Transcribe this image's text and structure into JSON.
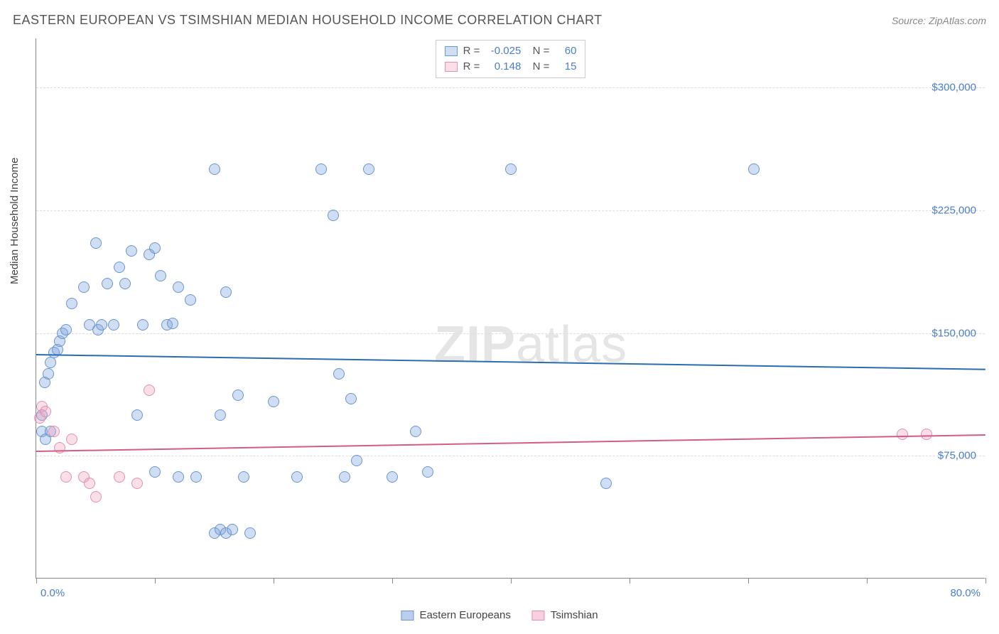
{
  "header": {
    "title": "EASTERN EUROPEAN VS TSIMSHIAN MEDIAN HOUSEHOLD INCOME CORRELATION CHART",
    "source": "Source: ZipAtlas.com"
  },
  "chart": {
    "type": "scatter",
    "y_axis_label": "Median Household Income",
    "x_range": [
      0,
      80
    ],
    "y_range": [
      0,
      330000
    ],
    "x_tick_positions": [
      0,
      10,
      20,
      30,
      40,
      50,
      60,
      70,
      80
    ],
    "x_labels": {
      "min": "0.0%",
      "max": "80.0%"
    },
    "y_gridlines": [
      {
        "value": 75000,
        "label": "$75,000"
      },
      {
        "value": 150000,
        "label": "$150,000"
      },
      {
        "value": 225000,
        "label": "$225,000"
      },
      {
        "value": 300000,
        "label": "$300,000"
      }
    ],
    "background_color": "#ffffff",
    "grid_color": "#dddddd",
    "axis_color": "#888888",
    "tick_label_color": "#4a7ec9",
    "point_radius": 8,
    "watermark": "ZIPatlas",
    "series": [
      {
        "name": "Eastern Europeans",
        "fill": "rgba(120,160,220,0.35)",
        "stroke": "#6a95d0",
        "trend_color": "#2b6cb0",
        "trend": {
          "y_at_xmin": 137000,
          "y_at_xmax": 128000
        },
        "stats": {
          "R": "-0.025",
          "N": "60"
        },
        "points": [
          [
            0.5,
            90000
          ],
          [
            0.5,
            100000
          ],
          [
            0.7,
            120000
          ],
          [
            1.0,
            125000
          ],
          [
            1.2,
            132000
          ],
          [
            1.5,
            138000
          ],
          [
            1.8,
            140000
          ],
          [
            2.0,
            145000
          ],
          [
            2.2,
            150000
          ],
          [
            2.5,
            152000
          ],
          [
            3.0,
            168000
          ],
          [
            4.0,
            178000
          ],
          [
            4.5,
            155000
          ],
          [
            5.0,
            205000
          ],
          [
            5.2,
            152000
          ],
          [
            5.5,
            155000
          ],
          [
            6.0,
            180000
          ],
          [
            6.5,
            155000
          ],
          [
            7.0,
            190000
          ],
          [
            7.5,
            180000
          ],
          [
            8.0,
            200000
          ],
          [
            8.5,
            100000
          ],
          [
            9.0,
            155000
          ],
          [
            9.5,
            198000
          ],
          [
            10.0,
            202000
          ],
          [
            10.5,
            185000
          ],
          [
            11.0,
            155000
          ],
          [
            11.5,
            156000
          ],
          [
            12.0,
            178000
          ],
          [
            13.0,
            170000
          ],
          [
            15.0,
            250000
          ],
          [
            16.0,
            175000
          ],
          [
            15.5,
            100000
          ],
          [
            10.0,
            65000
          ],
          [
            12.0,
            62000
          ],
          [
            13.5,
            62000
          ],
          [
            15.0,
            28000
          ],
          [
            15.5,
            30000
          ],
          [
            16.0,
            28000
          ],
          [
            16.5,
            30000
          ],
          [
            17.0,
            112000
          ],
          [
            17.5,
            62000
          ],
          [
            18.0,
            28000
          ],
          [
            20.0,
            108000
          ],
          [
            22.0,
            62000
          ],
          [
            24.0,
            250000
          ],
          [
            25.0,
            222000
          ],
          [
            25.5,
            125000
          ],
          [
            26.0,
            62000
          ],
          [
            26.5,
            110000
          ],
          [
            27.0,
            72000
          ],
          [
            28.0,
            250000
          ],
          [
            30.0,
            62000
          ],
          [
            32.0,
            90000
          ],
          [
            33.0,
            65000
          ],
          [
            40.0,
            250000
          ],
          [
            48.0,
            58000
          ],
          [
            60.5,
            250000
          ],
          [
            1.2,
            90000
          ],
          [
            0.8,
            85000
          ]
        ]
      },
      {
        "name": "Tsimshian",
        "fill": "rgba(240,160,190,0.35)",
        "stroke": "#e191b0",
        "trend_color": "#d65a8a",
        "trend": {
          "y_at_xmin": 78000,
          "y_at_xmax": 88000
        },
        "stats": {
          "R": "0.148",
          "N": "15"
        },
        "points": [
          [
            0.3,
            98000
          ],
          [
            0.5,
            105000
          ],
          [
            0.8,
            102000
          ],
          [
            1.5,
            90000
          ],
          [
            2.0,
            80000
          ],
          [
            2.5,
            62000
          ],
          [
            3.0,
            85000
          ],
          [
            4.0,
            62000
          ],
          [
            4.5,
            58000
          ],
          [
            5.0,
            50000
          ],
          [
            7.0,
            62000
          ],
          [
            8.5,
            58000
          ],
          [
            9.5,
            115000
          ],
          [
            73.0,
            88000
          ],
          [
            75.0,
            88000
          ]
        ]
      }
    ],
    "bottom_legend": [
      {
        "label": "Eastern Europeans",
        "fill": "rgba(120,160,220,0.5)",
        "stroke": "#6a95d0"
      },
      {
        "label": "Tsimshian",
        "fill": "rgba(240,160,190,0.5)",
        "stroke": "#e191b0"
      }
    ]
  }
}
